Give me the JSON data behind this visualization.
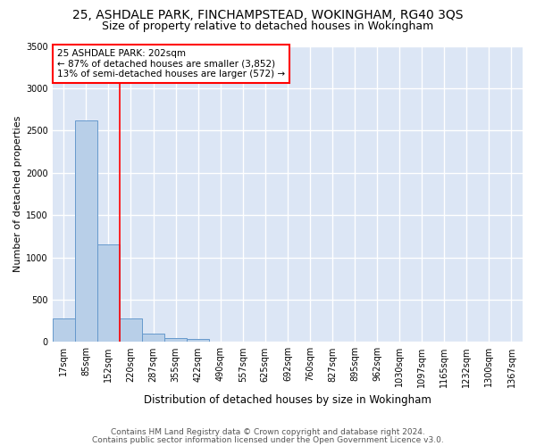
{
  "title1": "25, ASHDALE PARK, FINCHAMPSTEAD, WOKINGHAM, RG40 3QS",
  "title2": "Size of property relative to detached houses in Wokingham",
  "xlabel": "Distribution of detached houses by size in Wokingham",
  "ylabel": "Number of detached properties",
  "footer1": "Contains HM Land Registry data © Crown copyright and database right 2024.",
  "footer2": "Contains public sector information licensed under the Open Government Licence v3.0.",
  "bin_labels": [
    "17sqm",
    "85sqm",
    "152sqm",
    "220sqm",
    "287sqm",
    "355sqm",
    "422sqm",
    "490sqm",
    "557sqm",
    "625sqm",
    "692sqm",
    "760sqm",
    "827sqm",
    "895sqm",
    "962sqm",
    "1030sqm",
    "1097sqm",
    "1165sqm",
    "1232sqm",
    "1300sqm",
    "1367sqm"
  ],
  "bar_heights": [
    275,
    2620,
    1150,
    275,
    100,
    50,
    30,
    0,
    0,
    0,
    0,
    0,
    0,
    0,
    0,
    0,
    0,
    0,
    0,
    0,
    0
  ],
  "bar_color": "#b8cfe8",
  "bar_edge_color": "#6699cc",
  "red_line_x": 2.5,
  "annotation_text": "25 ASHDALE PARK: 202sqm\n← 87% of detached houses are smaller (3,852)\n13% of semi-detached houses are larger (572) →",
  "annotation_box_color": "white",
  "annotation_box_edge_color": "red",
  "red_line_color": "red",
  "ylim": [
    0,
    3500
  ],
  "yticks": [
    0,
    500,
    1000,
    1500,
    2000,
    2500,
    3000,
    3500
  ],
  "bg_color": "#dce6f5",
  "grid_color": "white",
  "title1_fontsize": 10,
  "title2_fontsize": 9,
  "xlabel_fontsize": 8.5,
  "ylabel_fontsize": 8,
  "annot_fontsize": 7.5,
  "tick_fontsize": 7,
  "footer_fontsize": 6.5
}
